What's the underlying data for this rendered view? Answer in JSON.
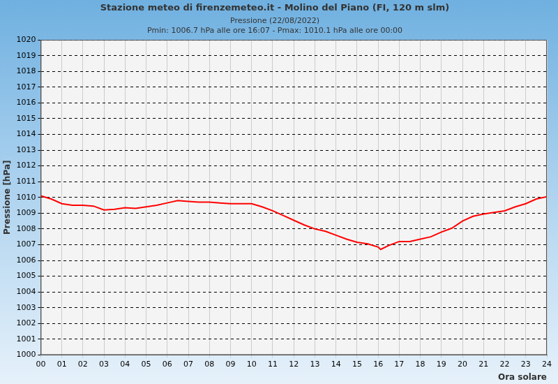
{
  "chart_data": {
    "type": "line",
    "title": "Stazione meteo di firenzemeteo.it - Molino del Piano (FI, 120 m slm)",
    "subtitle": [
      "Pressione (22/08/2022)",
      "Pmin: 1006.7 hPa alle ore 16:07 - Pmax: 1010.1 hPa alle ore 00:00"
    ],
    "x_label": "Ora solare",
    "y_label": "Pressione [hPa]",
    "x": [
      0,
      0.5,
      1,
      1.5,
      2,
      2.5,
      3,
      3.5,
      4,
      4.5,
      5,
      5.5,
      6,
      6.5,
      7,
      7.5,
      8,
      8.5,
      9,
      9.5,
      10,
      10.5,
      11,
      11.5,
      12,
      12.5,
      13,
      13.5,
      14,
      14.5,
      15,
      15.5,
      16,
      16.12,
      16.5,
      17,
      17.5,
      18,
      18.5,
      19,
      19.5,
      20,
      20.5,
      21,
      21.5,
      22,
      22.5,
      23,
      23.5,
      24
    ],
    "series": [
      {
        "name": "Pressione",
        "color": "#ff0000",
        "line_style": "solid",
        "marker": "none",
        "values": [
          1010.1,
          1009.9,
          1009.6,
          1009.5,
          1009.5,
          1009.45,
          1009.2,
          1009.25,
          1009.35,
          1009.3,
          1009.4,
          1009.5,
          1009.65,
          1009.8,
          1009.75,
          1009.7,
          1009.7,
          1009.65,
          1009.6,
          1009.6,
          1009.6,
          1009.4,
          1009.15,
          1008.85,
          1008.55,
          1008.25,
          1008.0,
          1007.85,
          1007.6,
          1007.35,
          1007.15,
          1007.05,
          1006.85,
          1006.7,
          1006.95,
          1007.2,
          1007.2,
          1007.35,
          1007.5,
          1007.8,
          1008.05,
          1008.5,
          1008.8,
          1008.95,
          1009.05,
          1009.15,
          1009.4,
          1009.6,
          1009.9,
          1010.05
        ]
      }
    ],
    "xlim": [
      0,
      24
    ],
    "xticks": [
      {
        "value": 0,
        "label": "00"
      },
      {
        "value": 1,
        "label": "01"
      },
      {
        "value": 2,
        "label": "02"
      },
      {
        "value": 3,
        "label": "03"
      },
      {
        "value": 4,
        "label": "04"
      },
      {
        "value": 5,
        "label": "05"
      },
      {
        "value": 6,
        "label": "06"
      },
      {
        "value": 7,
        "label": "07"
      },
      {
        "value": 8,
        "label": "08"
      },
      {
        "value": 9,
        "label": "09"
      },
      {
        "value": 10,
        "label": "10"
      },
      {
        "value": 11,
        "label": "11"
      },
      {
        "value": 12,
        "label": "12"
      },
      {
        "value": 13,
        "label": "13"
      },
      {
        "value": 14,
        "label": "14"
      },
      {
        "value": 15,
        "label": "15"
      },
      {
        "value": 16,
        "label": "16"
      },
      {
        "value": 17,
        "label": "17"
      },
      {
        "value": 18,
        "label": "18"
      },
      {
        "value": 19,
        "label": "19"
      },
      {
        "value": 20,
        "label": "20"
      },
      {
        "value": 21,
        "label": "21"
      },
      {
        "value": 22,
        "label": "22"
      },
      {
        "value": 23,
        "label": "23"
      },
      {
        "value": 24,
        "label": "24"
      }
    ],
    "ylim": [
      1000,
      1020
    ],
    "yticks": [
      1000,
      1001,
      1002,
      1003,
      1004,
      1005,
      1006,
      1007,
      1008,
      1009,
      1010,
      1011,
      1012,
      1013,
      1014,
      1015,
      1016,
      1017,
      1018,
      1019,
      1020
    ],
    "grid": true
  }
}
